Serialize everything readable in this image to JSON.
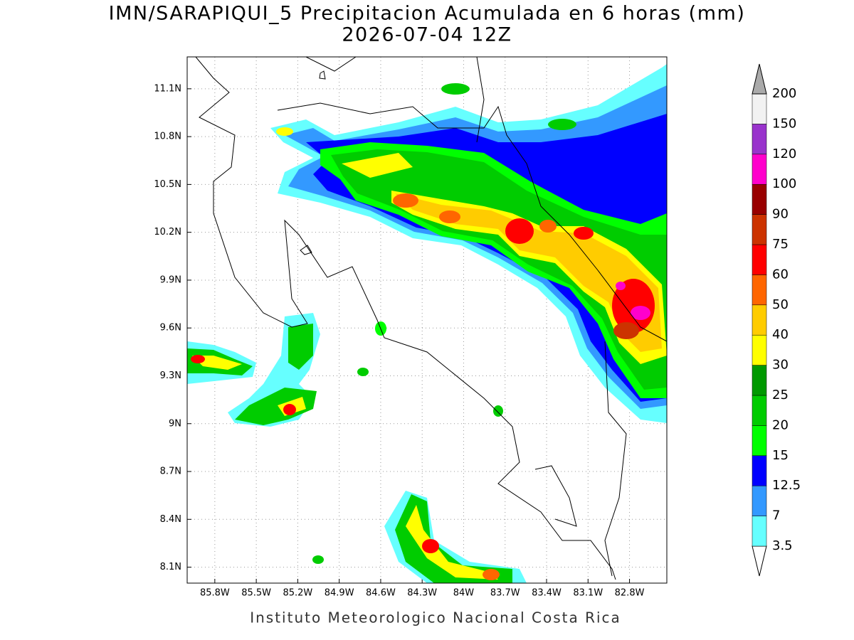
{
  "title": "IMN/SARAPIQUI_5 Precipitacion Acumulada en 6 horas (mm)",
  "subtitle": "2026-07-04 12Z",
  "map": {
    "xlim": [
      -86.0,
      -82.53
    ],
    "ylim": [
      8.0,
      11.3
    ],
    "xticks": [
      {
        "value": -85.8,
        "label": "85.8W"
      },
      {
        "value": -85.5,
        "label": "85.5W"
      },
      {
        "value": -85.2,
        "label": "85.2W"
      },
      {
        "value": -84.9,
        "label": "84.9W"
      },
      {
        "value": -84.6,
        "label": "84.6W"
      },
      {
        "value": -84.3,
        "label": "84.3W"
      },
      {
        "value": -84.0,
        "label": "84W"
      },
      {
        "value": -83.7,
        "label": "83.7W"
      },
      {
        "value": -83.4,
        "label": "83.4W"
      },
      {
        "value": -83.1,
        "label": "83.1W"
      },
      {
        "value": -82.8,
        "label": "82.8W"
      }
    ],
    "yticks": [
      {
        "value": 8.1,
        "label": "8.1N"
      },
      {
        "value": 8.4,
        "label": "8.4N"
      },
      {
        "value": 8.7,
        "label": "8.7N"
      },
      {
        "value": 9.0,
        "label": "9N"
      },
      {
        "value": 9.3,
        "label": "9.3N"
      },
      {
        "value": 9.6,
        "label": "9.6N"
      },
      {
        "value": 9.9,
        "label": "9.9N"
      },
      {
        "value": 10.2,
        "label": "10.2N"
      },
      {
        "value": 10.5,
        "label": "10.5N"
      },
      {
        "value": 10.8,
        "label": "10.8N"
      },
      {
        "value": 11.1,
        "label": "11.1N"
      }
    ],
    "grid": true
  },
  "colorbar": {
    "levels": [
      3.5,
      7,
      12.5,
      15,
      20,
      25,
      30,
      40,
      50,
      60,
      75,
      90,
      100,
      120,
      150,
      200
    ],
    "colors": [
      "#ffffff",
      "#66ffff",
      "#3399ff",
      "#0000ff",
      "#00ff00",
      "#00cc00",
      "#009900",
      "#ffff00",
      "#ffcc00",
      "#ff6600",
      "#ff0000",
      "#cc3300",
      "#990000",
      "#ff00cc",
      "#9933cc",
      "#f2f2f2",
      "#aaaaaa"
    ]
  },
  "footer": "Instituto Meteorologico Nacional Costa Rica"
}
